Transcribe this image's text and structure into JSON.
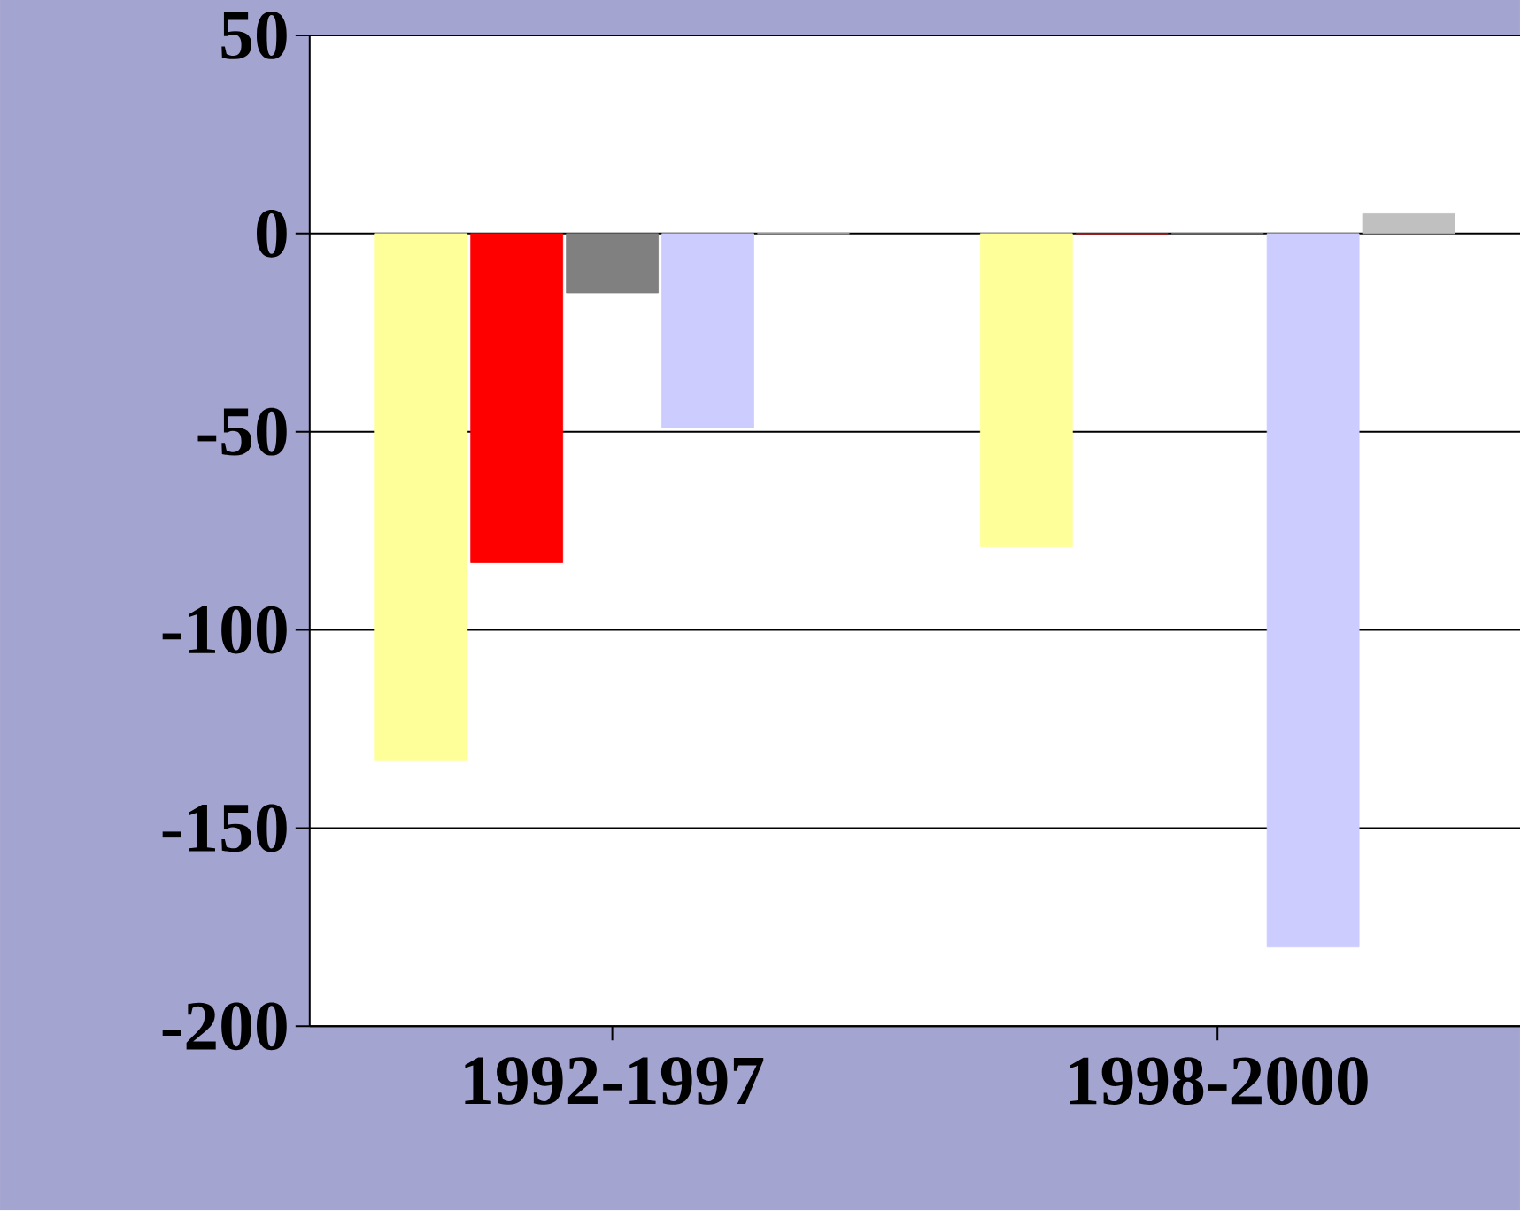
{
  "chart_data": {
    "type": "bar",
    "categories": [
      "1992-1997",
      "1998-2000"
    ],
    "series": [
      {
        "color": "#ffff99",
        "values": [
          -133,
          -79
        ]
      },
      {
        "color": "#ff0000",
        "values": [
          -83,
          0
        ]
      },
      {
        "color": "#808080",
        "values": [
          -15,
          0
        ]
      },
      {
        "color": "#ccccff",
        "values": [
          -49,
          -180
        ]
      },
      {
        "color": "#c0c0c0",
        "values": [
          0,
          5
        ]
      }
    ],
    "ylim": [
      -200,
      50
    ],
    "yticks": [
      -200,
      -150,
      -100,
      -50,
      0,
      50
    ],
    "grid": "y"
  }
}
